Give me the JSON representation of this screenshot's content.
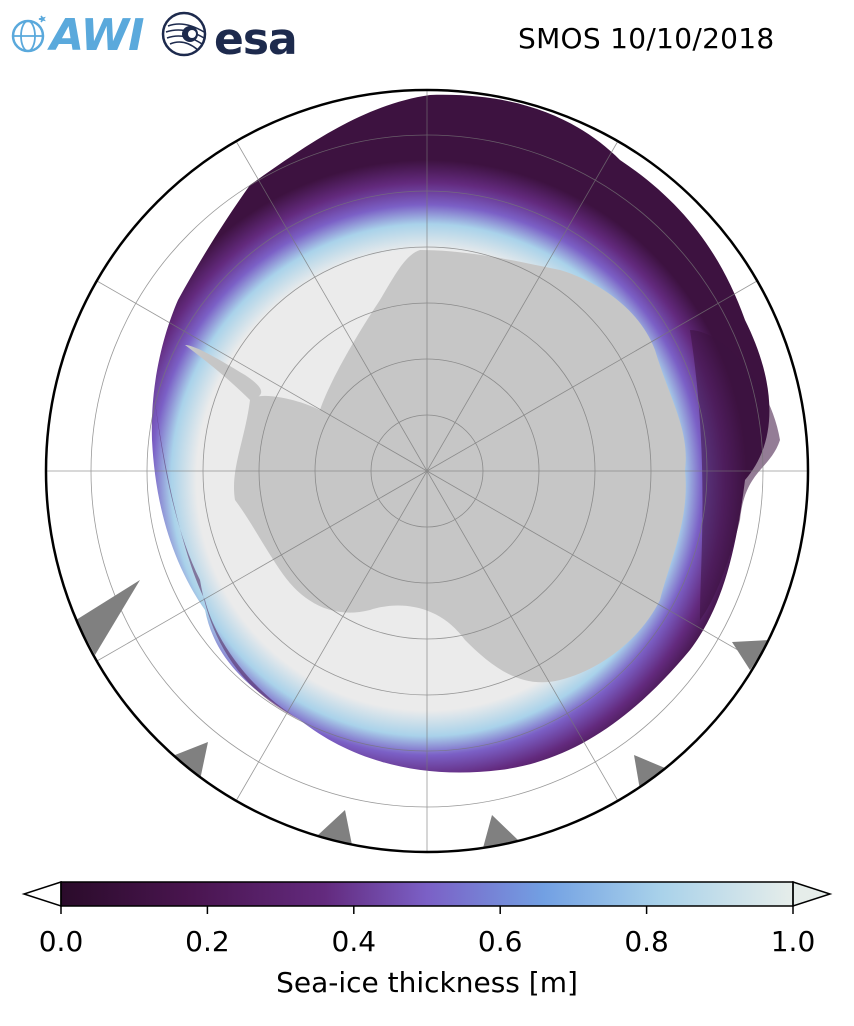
{
  "header": {
    "title": "SMOS 10/10/2018",
    "logos": [
      {
        "name": "awi-logo",
        "text": "AWI",
        "color": "#5aa9dc"
      },
      {
        "name": "esa-logo",
        "text": "esa",
        "color": "#1d2a4d"
      }
    ]
  },
  "map": {
    "projection": "south-polar-stereographic",
    "graticule": true,
    "land_color": "#c6c6c6",
    "no_data_color": "#808080",
    "open_water_color": "#ffffff",
    "thick_ice_color": "#ebebeb"
  },
  "colorbar": {
    "label": "Sea-ice thickness [m]",
    "ticks": [
      "0.0",
      "0.2",
      "0.4",
      "0.6",
      "0.8",
      "1.0"
    ],
    "range": [
      0.0,
      1.0
    ],
    "extend": "both",
    "colors": [
      "#2a0b2a",
      "#4a1550",
      "#632a7e",
      "#7b60c6",
      "#72a0e3",
      "#a9d2ea",
      "#e6edea"
    ]
  }
}
